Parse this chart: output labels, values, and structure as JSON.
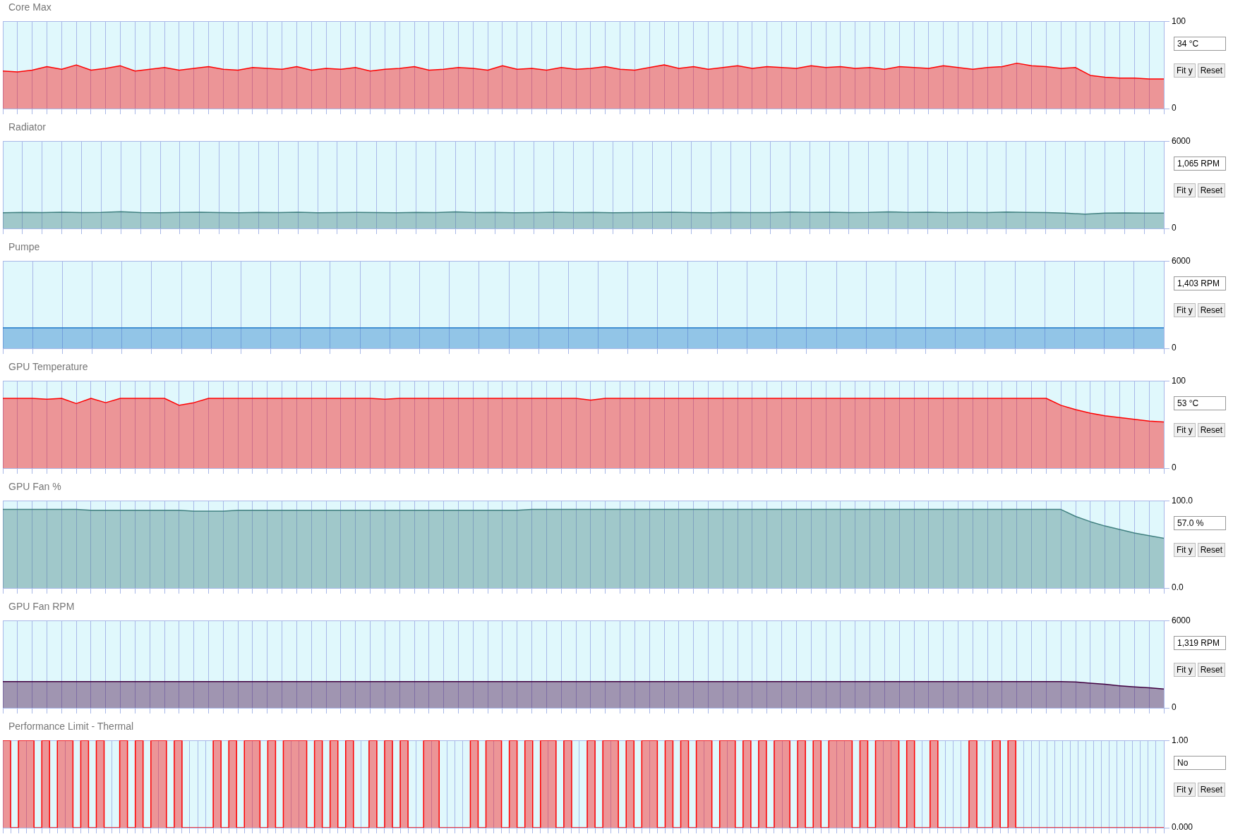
{
  "chart_data": [
    {
      "type": "area",
      "title": "Core Max",
      "categories": [
        null,
        null,
        null,
        null,
        null,
        null,
        null,
        null,
        null,
        null,
        null,
        null,
        null,
        null,
        null,
        null,
        null,
        null,
        null,
        null,
        null,
        null,
        null,
        null,
        null,
        null,
        null,
        null,
        null,
        null,
        null,
        null,
        null,
        null,
        null,
        null,
        null,
        null,
        null,
        null,
        null,
        null,
        null,
        null,
        null,
        null,
        null,
        null,
        null,
        null,
        null,
        null,
        null,
        null,
        null,
        null,
        null,
        null,
        null,
        null,
        null,
        null,
        null,
        null,
        null,
        null,
        null,
        null,
        null,
        null,
        null,
        null,
        null,
        null,
        null,
        null,
        null,
        null,
        null,
        null
      ],
      "series": [
        {
          "color": "#ff0000",
          "values": [
            43,
            42,
            44,
            48,
            45,
            50,
            44,
            46,
            49,
            43,
            45,
            47,
            44,
            46,
            48,
            45,
            44,
            47,
            46,
            45,
            48,
            44,
            46,
            45,
            47,
            43,
            45,
            46,
            48,
            44,
            45,
            47,
            46,
            44,
            49,
            45,
            46,
            44,
            47,
            45,
            46,
            48,
            45,
            44,
            47,
            50,
            46,
            48,
            45,
            47,
            49,
            46,
            48,
            47,
            46,
            49,
            47,
            48,
            46,
            47,
            45,
            48,
            47,
            46,
            49,
            47,
            45,
            47,
            48,
            52,
            49,
            48,
            46,
            47,
            38,
            36,
            35,
            35,
            34,
            34
          ]
        }
      ],
      "ylim": [
        0,
        100
      ],
      "yticks": [
        0,
        100
      ],
      "grid": true,
      "tick_labels": "y",
      "annotations": [
        "34 °C",
        "Fit y",
        "Reset"
      ]
    },
    {
      "type": "area",
      "title": "Radiator",
      "categories": [
        null,
        null,
        null,
        null,
        null,
        null,
        null,
        null,
        null,
        null,
        null,
        null,
        null,
        null,
        null,
        null,
        null,
        null,
        null,
        null,
        null,
        null,
        null,
        null,
        null,
        null,
        null,
        null,
        null,
        null,
        null,
        null,
        null,
        null,
        null,
        null,
        null,
        null,
        null,
        null,
        null,
        null,
        null,
        null,
        null,
        null,
        null,
        null,
        null,
        null,
        null,
        null,
        null,
        null,
        null,
        null,
        null,
        null,
        null,
        null
      ],
      "series": [
        {
          "color": "#408080",
          "values": [
            1080,
            1100,
            1090,
            1120,
            1090,
            1100,
            1150,
            1090,
            1080,
            1100,
            1120,
            1090,
            1080,
            1100,
            1090,
            1110,
            1080,
            1090,
            1100,
            1090,
            1080,
            1100,
            1090,
            1140,
            1090,
            1100,
            1080,
            1090,
            1110,
            1090,
            1100,
            1080,
            1090,
            1100,
            1120,
            1090,
            1080,
            1100,
            1090,
            1090,
            1130,
            1100,
            1120,
            1090,
            1100,
            1140,
            1100,
            1110,
            1090,
            1100,
            1090,
            1130,
            1100,
            1090,
            1050,
            980,
            1050,
            1070,
            1060,
            1050
          ]
        }
      ],
      "ylim": [
        0,
        6000
      ],
      "yticks": [
        0,
        6000
      ],
      "grid": true,
      "tick_labels": "y",
      "annotations": [
        "1,065 RPM",
        "Fit y",
        "Reset"
      ]
    },
    {
      "type": "area",
      "title": "Pumpe",
      "categories": [
        null,
        null,
        null,
        null,
        null,
        null,
        null,
        null,
        null,
        null,
        null,
        null,
        null,
        null,
        null,
        null,
        null,
        null,
        null,
        null,
        null,
        null,
        null,
        null,
        null,
        null,
        null,
        null,
        null,
        null,
        null,
        null,
        null,
        null,
        null,
        null,
        null,
        null,
        null,
        null
      ],
      "series": [
        {
          "color": "#1e78c8",
          "values": [
            1400,
            1400,
            1400,
            1400,
            1400,
            1400,
            1400,
            1400,
            1400,
            1400,
            1400,
            1400,
            1400,
            1400,
            1400,
            1400,
            1400,
            1400,
            1400,
            1400,
            1400,
            1400,
            1400,
            1400,
            1400,
            1400,
            1400,
            1400,
            1400,
            1400,
            1400,
            1400,
            1400,
            1400,
            1400,
            1400,
            1400,
            1400,
            1400,
            1400
          ]
        }
      ],
      "ylim": [
        0,
        6000
      ],
      "yticks": [
        0,
        6000
      ],
      "grid": true,
      "tick_labels": "y",
      "annotations": [
        "1,403 RPM",
        "Fit y",
        "Reset"
      ]
    },
    {
      "type": "area",
      "title": "GPU Temperature",
      "categories": [
        null,
        null,
        null,
        null,
        null,
        null,
        null,
        null,
        null,
        null,
        null,
        null,
        null,
        null,
        null,
        null,
        null,
        null,
        null,
        null,
        null,
        null,
        null,
        null,
        null,
        null,
        null,
        null,
        null,
        null,
        null,
        null,
        null,
        null,
        null,
        null,
        null,
        null,
        null,
        null,
        null,
        null,
        null,
        null,
        null,
        null,
        null,
        null,
        null,
        null,
        null,
        null,
        null,
        null,
        null,
        null,
        null,
        null,
        null,
        null,
        null,
        null,
        null,
        null,
        null,
        null,
        null,
        null,
        null,
        null,
        null,
        null,
        null,
        null,
        null,
        null,
        null,
        null,
        null,
        null
      ],
      "series": [
        {
          "color": "#ff0000",
          "values": [
            80,
            80,
            80,
            79,
            80,
            74,
            80,
            75,
            80,
            80,
            80,
            80,
            72,
            75,
            80,
            80,
            80,
            80,
            80,
            80,
            80,
            80,
            80,
            80,
            80,
            80,
            79,
            80,
            80,
            80,
            80,
            80,
            80,
            80,
            80,
            80,
            80,
            80,
            80,
            80,
            78,
            80,
            80,
            80,
            80,
            80,
            80,
            80,
            80,
            80,
            80,
            80,
            80,
            80,
            80,
            80,
            80,
            80,
            80,
            80,
            80,
            80,
            80,
            80,
            80,
            80,
            80,
            80,
            80,
            80,
            80,
            80,
            72,
            67,
            63,
            60,
            58,
            56,
            54,
            53
          ]
        }
      ],
      "ylim": [
        0,
        100
      ],
      "yticks": [
        0,
        100
      ],
      "grid": true,
      "tick_labels": "y",
      "annotations": [
        "53 °C",
        "Fit y",
        "Reset"
      ]
    },
    {
      "type": "area",
      "title": "GPU Fan %",
      "categories": [
        null,
        null,
        null,
        null,
        null,
        null,
        null,
        null,
        null,
        null,
        null,
        null,
        null,
        null,
        null,
        null,
        null,
        null,
        null,
        null,
        null,
        null,
        null,
        null,
        null,
        null,
        null,
        null,
        null,
        null,
        null,
        null,
        null,
        null,
        null,
        null,
        null,
        null,
        null,
        null,
        null,
        null,
        null,
        null,
        null,
        null,
        null,
        null,
        null,
        null,
        null,
        null,
        null,
        null,
        null,
        null,
        null,
        null,
        null,
        null,
        null,
        null,
        null,
        null,
        null,
        null,
        null,
        null,
        null,
        null,
        null,
        null,
        null,
        null,
        null,
        null,
        null,
        null,
        null,
        null
      ],
      "series": [
        {
          "color": "#408080",
          "values": [
            90,
            90,
            90,
            90,
            90,
            90,
            89,
            89,
            89,
            89,
            89,
            89,
            89,
            88,
            88,
            88,
            89,
            89,
            89,
            89,
            89,
            89,
            89,
            89,
            89,
            89,
            89,
            89,
            89,
            89,
            89,
            89,
            89,
            89,
            89,
            89,
            90,
            90,
            90,
            90,
            90,
            90,
            90,
            90,
            90,
            90,
            90,
            90,
            90,
            90,
            90,
            90,
            90,
            90,
            90,
            90,
            90,
            90,
            90,
            90,
            90,
            90,
            90,
            90,
            90,
            90,
            90,
            90,
            90,
            90,
            90,
            90,
            90,
            82,
            76,
            71,
            67,
            63,
            60,
            57
          ]
        }
      ],
      "ylim": [
        0,
        100
      ],
      "yticks": [
        {
          "value": 0,
          "label": "0.0"
        },
        {
          "value": 100,
          "label": "100.0"
        }
      ],
      "grid": true,
      "tick_labels": "y",
      "annotations": [
        "57.0 %",
        "Fit y",
        "Reset"
      ]
    },
    {
      "type": "area",
      "title": "GPU Fan RPM",
      "categories": [
        null,
        null,
        null,
        null,
        null,
        null,
        null,
        null,
        null,
        null,
        null,
        null,
        null,
        null,
        null,
        null,
        null,
        null,
        null,
        null,
        null,
        null,
        null,
        null,
        null,
        null,
        null,
        null,
        null,
        null,
        null,
        null,
        null,
        null,
        null,
        null,
        null,
        null,
        null,
        null,
        null,
        null,
        null,
        null,
        null,
        null,
        null,
        null,
        null,
        null,
        null,
        null,
        null,
        null,
        null,
        null,
        null,
        null,
        null,
        null,
        null,
        null,
        null,
        null,
        null,
        null,
        null,
        null,
        null,
        null,
        null,
        null,
        null,
        null,
        null,
        null,
        null,
        null,
        null,
        null
      ],
      "series": [
        {
          "color": "#400040",
          "values": [
            1800,
            1800,
            1800,
            1800,
            1800,
            1800,
            1800,
            1800,
            1800,
            1800,
            1800,
            1800,
            1800,
            1800,
            1800,
            1800,
            1800,
            1800,
            1800,
            1800,
            1800,
            1800,
            1800,
            1800,
            1800,
            1800,
            1800,
            1800,
            1800,
            1800,
            1800,
            1800,
            1800,
            1800,
            1800,
            1800,
            1800,
            1800,
            1800,
            1800,
            1800,
            1800,
            1800,
            1800,
            1800,
            1800,
            1800,
            1800,
            1800,
            1800,
            1800,
            1800,
            1800,
            1800,
            1800,
            1800,
            1800,
            1800,
            1800,
            1800,
            1800,
            1800,
            1800,
            1800,
            1800,
            1800,
            1800,
            1800,
            1800,
            1800,
            1800,
            1800,
            1800,
            1780,
            1700,
            1620,
            1520,
            1440,
            1380,
            1300
          ]
        }
      ],
      "ylim": [
        0,
        6000
      ],
      "yticks": [
        0,
        6000
      ],
      "grid": true,
      "tick_labels": "y",
      "annotations": [
        "1,319 RPM",
        "Fit y",
        "Reset"
      ]
    },
    {
      "type": "step",
      "title": "Performance Limit - Thermal",
      "categories": [
        null,
        null,
        null,
        null,
        null,
        null,
        null,
        null,
        null,
        null,
        null,
        null,
        null,
        null,
        null,
        null,
        null,
        null,
        null,
        null,
        null,
        null,
        null,
        null,
        null,
        null,
        null,
        null,
        null,
        null,
        null,
        null,
        null,
        null,
        null,
        null,
        null,
        null,
        null,
        null,
        null,
        null,
        null,
        null,
        null,
        null,
        null,
        null,
        null,
        null,
        null,
        null,
        null,
        null,
        null,
        null,
        null,
        null,
        null,
        null,
        null,
        null,
        null,
        null,
        null,
        null,
        null,
        null,
        null,
        null,
        null,
        null,
        null,
        null,
        null,
        null,
        null,
        null,
        null,
        null,
        null,
        null,
        null,
        null,
        null,
        null,
        null,
        null,
        null,
        null,
        null,
        null,
        null,
        null,
        null,
        null,
        null,
        null,
        null,
        null,
        null,
        null,
        null,
        null,
        null,
        null,
        null,
        null,
        null,
        null,
        null,
        null,
        null,
        null,
        null,
        null,
        null,
        null,
        null,
        null,
        null,
        null,
        null,
        null,
        null,
        null,
        null,
        null,
        null,
        null,
        null,
        null,
        null,
        null,
        null,
        null,
        null,
        null,
        null,
        null,
        null,
        null,
        null,
        null,
        null,
        null,
        null,
        null,
        null,
        null
      ],
      "series": [
        {
          "color": "#ff0000",
          "values": [
            1,
            0,
            1,
            1,
            0,
            1,
            0,
            1,
            1,
            0,
            1,
            0,
            1,
            0,
            0,
            1,
            0,
            1,
            0,
            1,
            1,
            0,
            1,
            0,
            0,
            0,
            0,
            1,
            0,
            1,
            0,
            1,
            1,
            0,
            1,
            0,
            1,
            1,
            1,
            0,
            1,
            0,
            1,
            0,
            1,
            0,
            0,
            1,
            0,
            1,
            0,
            1,
            0,
            0,
            1,
            1,
            0,
            0,
            0,
            0,
            1,
            0,
            1,
            1,
            0,
            1,
            0,
            1,
            0,
            1,
            1,
            0,
            1,
            0,
            0,
            1,
            0,
            1,
            1,
            0,
            1,
            0,
            1,
            1,
            0,
            1,
            0,
            1,
            0,
            1,
            1,
            0,
            1,
            1,
            0,
            1,
            0,
            1,
            0,
            1,
            1,
            0,
            1,
            0,
            1,
            0,
            1,
            1,
            1,
            0,
            1,
            0,
            1,
            1,
            1,
            0,
            1,
            0,
            0,
            1,
            0,
            0,
            0,
            0,
            1,
            0,
            0,
            1,
            0,
            1,
            0,
            0,
            0,
            0,
            0,
            0,
            0,
            0,
            0,
            0,
            0,
            0,
            0,
            0,
            0,
            0,
            0,
            0,
            0,
            0
          ]
        }
      ],
      "ylim": [
        0,
        1
      ],
      "yticks": [
        {
          "value": 0,
          "label": "0.000"
        },
        {
          "value": 1,
          "label": "1.00"
        }
      ],
      "grid": true,
      "tick_labels": "y",
      "annotations": [
        "No",
        "Fit y",
        "Reset"
      ]
    }
  ]
}
